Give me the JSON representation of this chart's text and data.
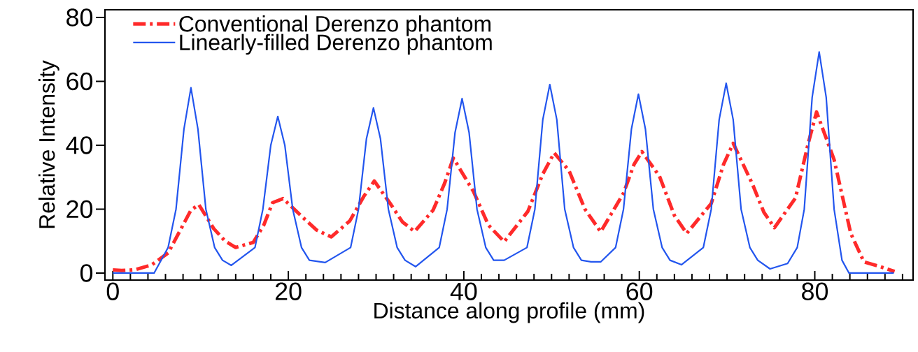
{
  "chart_data": {
    "type": "line",
    "xlabel": "Distance along profile (mm)",
    "ylabel": "Relative Intensity",
    "xlim": [
      -0.9,
      91.2
    ],
    "ylim": [
      -2.2,
      82.4
    ],
    "xticks": [
      0,
      {
        "value": 2,
        "label": null
      },
      {
        "value": 4,
        "label": null
      },
      {
        "value": 6,
        "label": null
      },
      {
        "value": 8,
        "label": null
      },
      {
        "value": 10,
        "label": null
      },
      {
        "value": 12,
        "label": null
      },
      {
        "value": 14,
        "label": null
      },
      {
        "value": 16,
        "label": null
      },
      {
        "value": 18,
        "label": null
      },
      20,
      {
        "value": 22,
        "label": null
      },
      {
        "value": 24,
        "label": null
      },
      {
        "value": 26,
        "label": null
      },
      {
        "value": 28,
        "label": null
      },
      {
        "value": 30,
        "label": null
      },
      {
        "value": 32,
        "label": null
      },
      {
        "value": 34,
        "label": null
      },
      {
        "value": 36,
        "label": null
      },
      {
        "value": 38,
        "label": null
      },
      40,
      {
        "value": 42,
        "label": null
      },
      {
        "value": 44,
        "label": null
      },
      {
        "value": 46,
        "label": null
      },
      {
        "value": 48,
        "label": null
      },
      {
        "value": 50,
        "label": null
      },
      {
        "value": 52,
        "label": null
      },
      {
        "value": 54,
        "label": null
      },
      {
        "value": 56,
        "label": null
      },
      {
        "value": 58,
        "label": null
      },
      60,
      {
        "value": 62,
        "label": null
      },
      {
        "value": 64,
        "label": null
      },
      {
        "value": 66,
        "label": null
      },
      {
        "value": 68,
        "label": null
      },
      {
        "value": 70,
        "label": null
      },
      {
        "value": 72,
        "label": null
      },
      {
        "value": 74,
        "label": null
      },
      {
        "value": 76,
        "label": null
      },
      {
        "value": 78,
        "label": null
      },
      80,
      {
        "value": 82,
        "label": null
      },
      {
        "value": 84,
        "label": null
      },
      {
        "value": 86,
        "label": null
      },
      {
        "value": 88,
        "label": null
      },
      {
        "value": 90,
        "label": null
      }
    ],
    "yticks": [
      0,
      20,
      40,
      60,
      80
    ],
    "legend": "top left",
    "grid": false,
    "marker": "none",
    "series": [
      {
        "name": "Conventional Derenzo phantom",
        "color": "#ff2a2a",
        "line_style": "dashdot",
        "x": [
          0,
          1,
          2.5,
          4.4,
          6.3,
          7.8,
          8.9,
          9.8,
          11.5,
          12.8,
          14,
          16,
          17.2,
          18.2,
          19.4,
          21.5,
          23.2,
          24.9,
          27,
          28.6,
          29.8,
          31.7,
          33,
          34.4,
          36.5,
          37.8,
          38.8,
          41.1,
          42.8,
          44.6,
          47.3,
          49,
          50.3,
          52,
          53.8,
          55.6,
          58.2,
          59.4,
          60.3,
          62.3,
          64,
          65.4,
          68.2,
          69.6,
          70.7,
          72.9,
          74.2,
          75.4,
          77.8,
          79.2,
          80.2,
          82.2,
          84.1,
          85.6,
          87.2,
          89.1
        ],
        "values": [
          1,
          0.8,
          1,
          2.5,
          6.3,
          14,
          19.7,
          21.4,
          13.9,
          10,
          8,
          9.6,
          15,
          22,
          23.3,
          17.8,
          13.5,
          11.3,
          16.3,
          24,
          28.8,
          21.4,
          16,
          13,
          19.7,
          28,
          36,
          25.5,
          15,
          9.8,
          19.3,
          31,
          37.6,
          32,
          20,
          12.9,
          25,
          34,
          38,
          30.3,
          18,
          12.4,
          21.8,
          34,
          40.6,
          27.8,
          19,
          14.2,
          23.5,
          40,
          50.4,
          35.5,
          12.4,
          3.5,
          2.2,
          0.5
        ]
      },
      {
        "name": "Linearly-filled Derenzo phantom",
        "color": "#2255ee",
        "line_style": "solid",
        "x": [
          0,
          4.7,
          6.3,
          7.2,
          8.1,
          8.9,
          9.7,
          10.6,
          11.6,
          12.5,
          13.5,
          16.2,
          17.1,
          18.0,
          18.8,
          19.6,
          20.5,
          21.5,
          22.4,
          24.2,
          27.1,
          28.0,
          28.9,
          29.7,
          30.5,
          31.4,
          32.4,
          33.3,
          34.5,
          37.2,
          38.1,
          39.0,
          39.8,
          40.6,
          41.5,
          42.5,
          43.4,
          44.6,
          47.2,
          48.1,
          49.0,
          49.8,
          50.6,
          51.5,
          52.5,
          53.4,
          54.5,
          55.6,
          57.3,
          58.2,
          59.1,
          59.9,
          60.7,
          61.6,
          62.6,
          63.5,
          64.8,
          67.3,
          68.2,
          69.1,
          69.9,
          70.7,
          71.6,
          72.6,
          73.5,
          74.9,
          76.9,
          78.0,
          78.8,
          79.7,
          80.5,
          81.3,
          82.2,
          83.1,
          83.9,
          89
        ],
        "values": [
          0,
          0,
          8,
          20,
          45,
          58,
          45,
          20,
          8,
          4,
          2.4,
          8,
          20,
          40,
          49,
          40,
          20,
          8,
          4,
          3.3,
          8,
          20,
          42,
          51.7,
          42,
          20,
          8,
          4,
          2,
          8,
          20,
          44,
          54.6,
          44,
          20,
          8,
          4,
          4,
          8,
          20,
          48,
          59,
          48,
          20,
          8,
          4,
          3.5,
          3.5,
          8,
          20,
          45,
          56,
          45,
          20,
          8,
          4,
          2.6,
          8,
          20,
          48,
          59.4,
          48,
          20,
          8,
          4,
          1.3,
          3,
          8,
          20,
          55,
          69.2,
          55,
          20,
          4,
          0,
          0
        ]
      }
    ]
  }
}
